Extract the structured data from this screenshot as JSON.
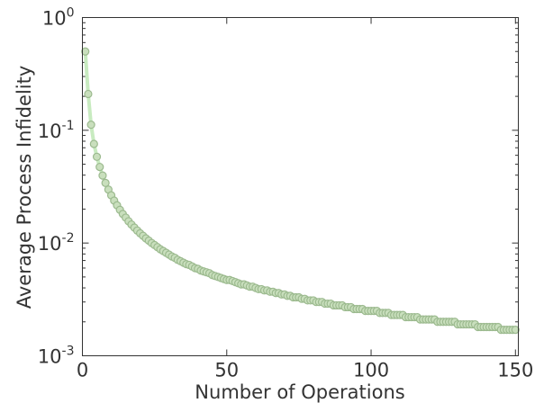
{
  "chart_data": {
    "type": "scatter",
    "xlabel": "Number of Operations",
    "ylabel": "Average Process Infidelity",
    "xlim": [
      0,
      151
    ],
    "ylim": [
      0.001,
      1
    ],
    "yscale": "log",
    "grid": false,
    "x_ticks": [
      {
        "value": 0,
        "label": "0"
      },
      {
        "value": 50,
        "label": "50"
      },
      {
        "value": 100,
        "label": "100"
      },
      {
        "value": 150,
        "label": "150"
      }
    ],
    "y_ticks": [
      {
        "value": 1,
        "base": "10",
        "exp": "0"
      },
      {
        "value": 0.1,
        "base": "10",
        "exp": "-1"
      },
      {
        "value": 0.01,
        "base": "10",
        "exp": "-2"
      },
      {
        "value": 0.001,
        "base": "10",
        "exp": "-3"
      }
    ],
    "series": [
      {
        "color": "#c8ebc0",
        "marker_fill": "#c9dfbd",
        "marker_edge": "#9cba8f",
        "x": [
          1,
          2,
          3,
          4,
          5,
          6,
          7,
          8,
          9,
          10,
          11,
          12,
          13,
          14,
          15,
          16,
          17,
          18,
          19,
          20,
          21,
          22,
          23,
          24,
          25,
          26,
          27,
          28,
          29,
          30,
          31,
          32,
          33,
          34,
          35,
          36,
          37,
          38,
          39,
          40,
          41,
          42,
          43,
          44,
          45,
          46,
          47,
          48,
          49,
          50,
          51,
          52,
          53,
          54,
          55,
          56,
          57,
          58,
          59,
          60,
          61,
          62,
          63,
          64,
          65,
          66,
          67,
          68,
          69,
          70,
          71,
          72,
          73,
          74,
          75,
          76,
          77,
          78,
          79,
          80,
          81,
          82,
          83,
          84,
          85,
          86,
          87,
          88,
          89,
          90,
          91,
          92,
          93,
          94,
          95,
          96,
          97,
          98,
          99,
          100,
          101,
          102,
          103,
          104,
          105,
          106,
          107,
          108,
          109,
          110,
          111,
          112,
          113,
          114,
          115,
          116,
          117,
          118,
          119,
          120,
          121,
          122,
          123,
          124,
          125,
          126,
          127,
          128,
          129,
          130,
          131,
          132,
          133,
          134,
          135,
          136,
          137,
          138,
          139,
          140,
          141,
          142,
          143,
          144,
          145,
          146,
          147,
          148,
          149,
          150
        ],
        "y": [
          0.5,
          0.21,
          0.112,
          0.0757,
          0.0582,
          0.0473,
          0.0397,
          0.0341,
          0.0298,
          0.0265,
          0.0238,
          0.0216,
          0.0197,
          0.0181,
          0.0168,
          0.0156,
          0.0146,
          0.0137,
          0.0129,
          0.0122,
          0.0116,
          0.011,
          0.0105,
          0.01,
          0.0096,
          0.0092,
          0.0088,
          0.0085,
          0.0082,
          0.0079,
          0.0076,
          0.0074,
          0.0071,
          0.0069,
          0.0067,
          0.0065,
          0.0064,
          0.0062,
          0.006,
          0.0059,
          0.0057,
          0.0056,
          0.0055,
          0.0054,
          0.0052,
          0.0051,
          0.005,
          0.0049,
          0.0048,
          0.0047,
          0.0047,
          0.0046,
          0.0045,
          0.0044,
          0.0043,
          0.0043,
          0.0042,
          0.0041,
          0.0041,
          0.004,
          0.0039,
          0.0039,
          0.0038,
          0.0038,
          0.0037,
          0.0037,
          0.0036,
          0.0036,
          0.0035,
          0.0035,
          0.0034,
          0.0034,
          0.0033,
          0.0033,
          0.0033,
          0.0032,
          0.0032,
          0.0031,
          0.0031,
          0.0031,
          0.003,
          0.003,
          0.003,
          0.0029,
          0.0029,
          0.0029,
          0.0028,
          0.0028,
          0.0028,
          0.0028,
          0.0027,
          0.0027,
          0.0027,
          0.0026,
          0.0026,
          0.0026,
          0.0026,
          0.0025,
          0.0025,
          0.0025,
          0.0025,
          0.0025,
          0.0024,
          0.0024,
          0.0024,
          0.0024,
          0.0023,
          0.0023,
          0.0023,
          0.0023,
          0.0023,
          0.0022,
          0.0022,
          0.0022,
          0.0022,
          0.0022,
          0.0021,
          0.0021,
          0.0021,
          0.0021,
          0.0021,
          0.0021,
          0.002,
          0.002,
          0.002,
          0.002,
          0.002,
          0.002,
          0.002,
          0.0019,
          0.0019,
          0.0019,
          0.0019,
          0.0019,
          0.0019,
          0.0019,
          0.0018,
          0.0018,
          0.0018,
          0.0018,
          0.0018,
          0.0018,
          0.0018,
          0.0018,
          0.0017,
          0.0017,
          0.0017,
          0.0017,
          0.0017,
          0.0017
        ]
      }
    ]
  }
}
